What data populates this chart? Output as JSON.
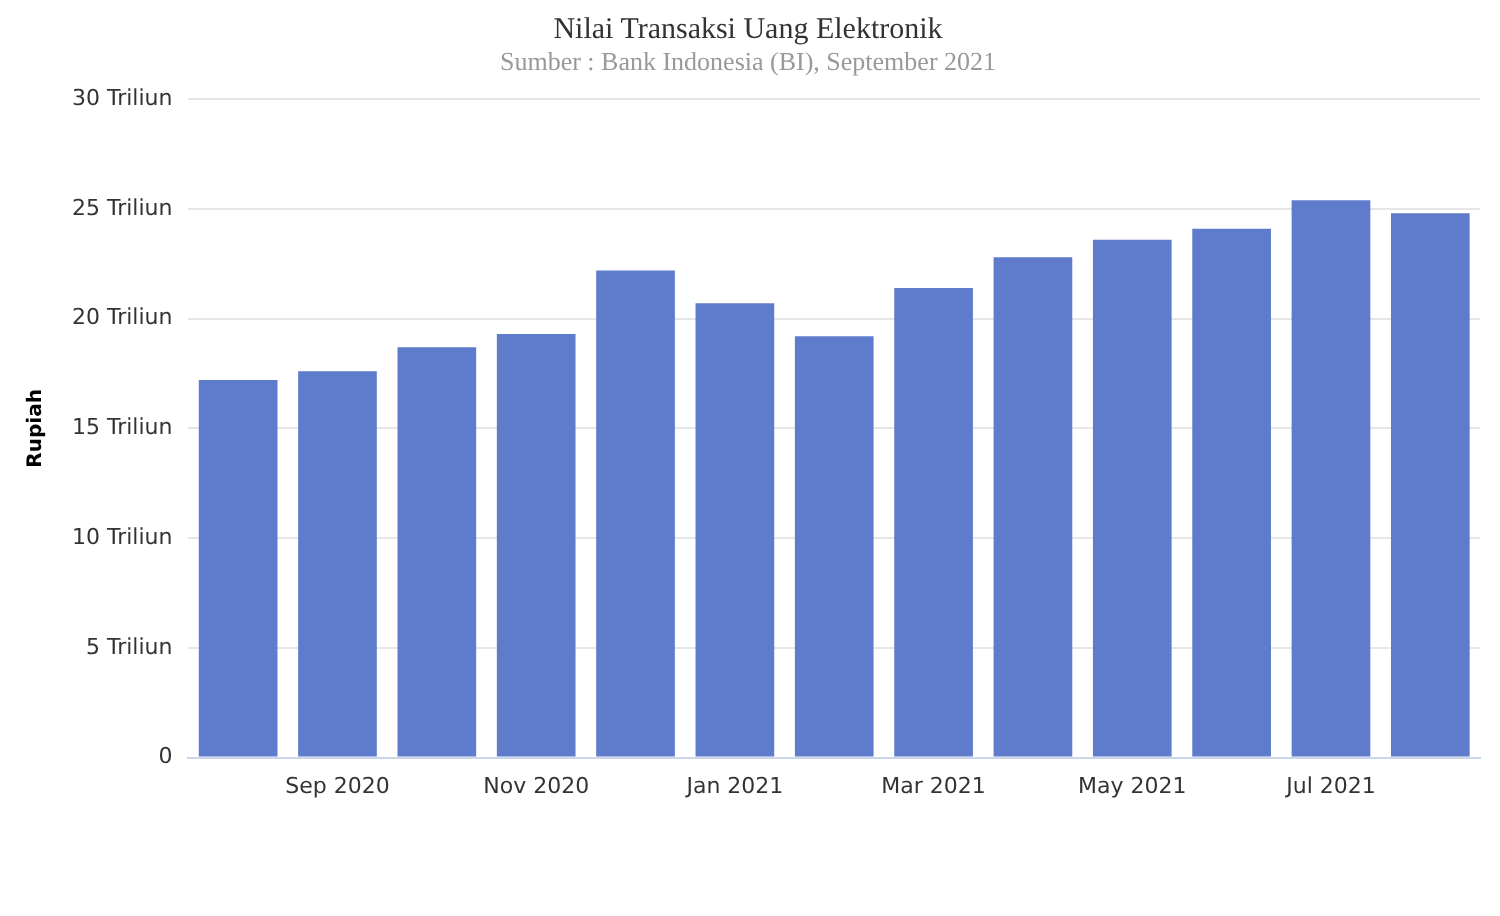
{
  "chart_data": {
    "type": "bar",
    "title": "Nilai Transaksi Uang Elektronik",
    "subtitle": "Sumber : Bank Indonesia (BI), September 2021",
    "ylabel": "Rupiah",
    "categories": [
      null,
      "Sep 2020",
      null,
      "Nov 2020",
      null,
      "Jan 2021",
      null,
      "Mar 2021",
      null,
      "May 2021",
      null,
      "Jul 2021",
      null
    ],
    "values": [
      17.2,
      17.6,
      18.7,
      19.3,
      22.2,
      20.7,
      19.2,
      21.4,
      22.8,
      23.6,
      24.1,
      25.4,
      24.8
    ],
    "color": "#5f7bcc",
    "ylim": [
      0,
      30
    ],
    "yticks": [
      0,
      {
        "value": 5,
        "label": "5 Triliun"
      },
      {
        "value": 10,
        "label": "10 Triliun"
      },
      {
        "value": 15,
        "label": "15 Triliun"
      },
      {
        "value": 20,
        "label": "20 Triliun"
      },
      {
        "value": 25,
        "label": "25 Triliun"
      },
      {
        "value": 30,
        "label": "30 Triliun"
      }
    ],
    "grid": "y",
    "legend": false
  }
}
